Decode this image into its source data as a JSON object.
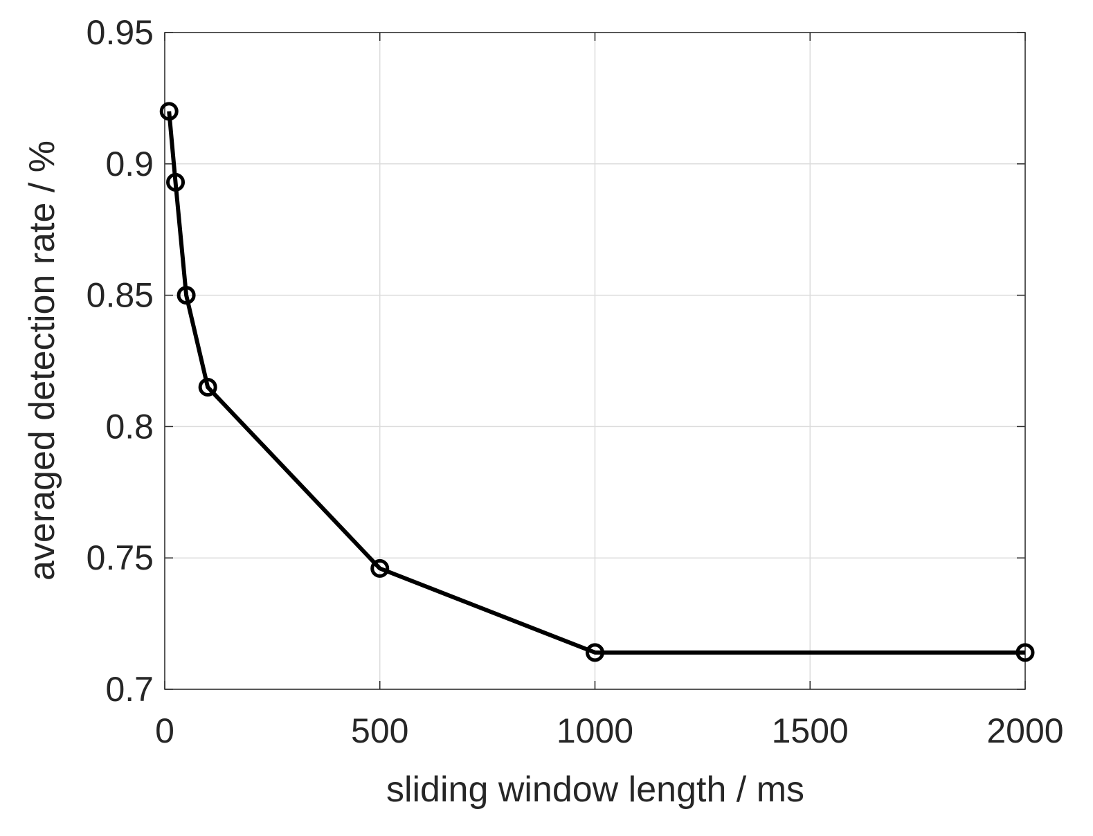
{
  "chart_data": {
    "type": "line",
    "xlabel": "sliding window length / ms",
    "ylabel": "averaged detection rate / %",
    "x": [
      10,
      25,
      50,
      100,
      500,
      1000,
      2000
    ],
    "values": [
      0.92,
      0.893,
      0.85,
      0.815,
      0.746,
      0.714,
      0.714
    ],
    "color": "#000000",
    "marker": "circle",
    "xlim": [
      0,
      2000
    ],
    "xticks": [
      0,
      500,
      1000,
      1500,
      2000
    ],
    "ylim": [
      0.7,
      0.95
    ],
    "yticks": [
      0.7,
      0.75,
      0.8,
      0.85,
      0.9,
      0.95
    ],
    "grid": true
  }
}
